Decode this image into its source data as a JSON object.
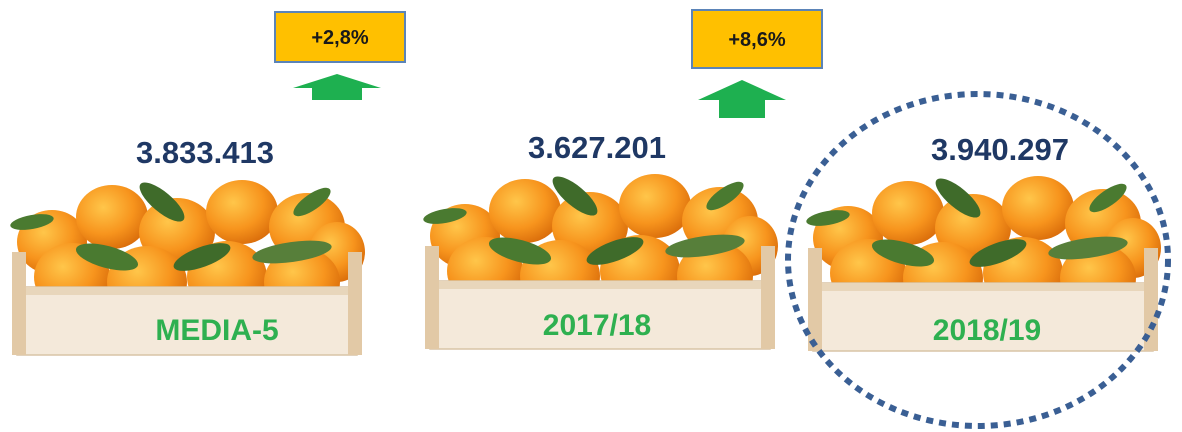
{
  "items": [
    {
      "value": "3.833.413",
      "label": "MEDIA-5"
    },
    {
      "value": "3.627.201",
      "label": "2017/18"
    },
    {
      "value": "3.940.297",
      "label": "2018/19"
    }
  ],
  "changes": [
    {
      "label": "+2,8%"
    },
    {
      "label": "+8,6%"
    }
  ]
}
